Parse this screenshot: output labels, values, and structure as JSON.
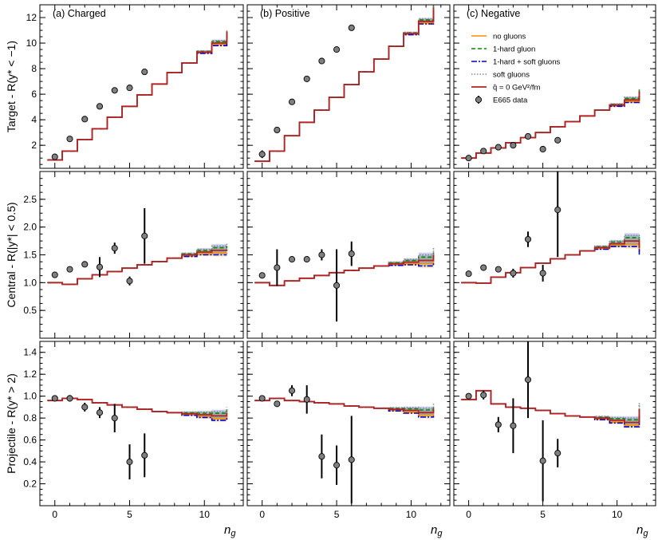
{
  "chart_data": {
    "type": "line",
    "xlabel": "n",
    "xlabel_sub": "g",
    "xlim": [
      -1,
      12.6
    ],
    "xticks": [
      0,
      5,
      10
    ],
    "columns": [
      "(a) Charged",
      "(b) Positive",
      "(c) Negative"
    ],
    "rows": [
      {
        "name": "target",
        "ylabel": "Target - R(y* < −1)",
        "ylim": [
          0.2,
          13
        ],
        "yticks": [
          2,
          4,
          6,
          8,
          10,
          12
        ],
        "ytick_labels": [
          "2",
          "4",
          "6",
          "8",
          "10",
          "12"
        ]
      },
      {
        "name": "central",
        "ylabel": "Central - R(|y*| < 0.5)",
        "ylim": [
          0,
          3
        ],
        "yticks": [
          0.5,
          1.0,
          1.5,
          2.0,
          2.5
        ],
        "ytick_labels": [
          "0.5",
          "1.0",
          "1.5",
          "2.0",
          "2.5"
        ]
      },
      {
        "name": "projectile",
        "ylabel": "Projectile - R(y* > 2)",
        "ylim": [
          0,
          1.5
        ],
        "yticks": [
          0.2,
          0.4,
          0.6,
          0.8,
          1.0,
          1.2,
          1.4
        ],
        "ytick_labels": [
          "0.2",
          "0.4",
          "0.6",
          "0.8",
          "1.0",
          "1.2",
          "1.4"
        ]
      }
    ],
    "legend": {
      "placement": "top-right of panel (c) Target",
      "entries": [
        {
          "label": "no gluons",
          "color": "#ff8c00",
          "style": "solid"
        },
        {
          "label": "1-hard gluon",
          "color": "#008800",
          "style": "dashed"
        },
        {
          "label": "1-hard + soft gluons",
          "color": "#0000cc",
          "style": "dashdot"
        },
        {
          "label": "soft gluons",
          "color": "#888888",
          "style": "dotted"
        },
        {
          "label": "q̂ = 0 GeV²/fm",
          "color": "#b22222",
          "style": "solid"
        },
        {
          "label": "E665 data",
          "color": "#808080",
          "style": "marker"
        }
      ]
    },
    "model_bins": {
      "edges": [
        -0.5,
        0.5,
        1.5,
        2.5,
        3.5,
        4.5,
        5.5,
        6.5,
        7.5,
        8.5,
        9.5,
        10.5,
        11.5
      ],
      "panels": [
        [
          {
            "values": [
              0.85,
              1.55,
              2.45,
              3.3,
              4.2,
              5.05,
              5.95,
              6.8,
              7.7,
              8.45,
              9.3,
              10.0,
              10.9
            ],
            "spread": [
              0,
              0,
              0,
              0,
              0,
              0,
              0,
              0,
              0,
              0,
              0.1,
              0.2,
              0.12
            ]
          },
          {
            "values": [
              0.75,
              1.55,
              2.75,
              3.8,
              4.75,
              5.75,
              6.75,
              7.75,
              8.75,
              9.75,
              10.75,
              11.7,
              12.8
            ],
            "spread": [
              0,
              0,
              0,
              0,
              0,
              0,
              0,
              0,
              0,
              0,
              0.1,
              0.2,
              0.25
            ]
          },
          {
            "values": [
              1.0,
              1.4,
              1.8,
              2.2,
              2.6,
              3.0,
              3.45,
              3.85,
              4.3,
              4.75,
              5.15,
              5.55,
              6.2
            ],
            "spread": [
              0,
              0,
              0,
              0,
              0,
              0,
              0,
              0,
              0,
              0,
              0.1,
              0.2,
              0.3
            ]
          }
        ],
        [
          {
            "values": [
              1.0,
              0.97,
              1.07,
              1.14,
              1.2,
              1.26,
              1.32,
              1.38,
              1.44,
              1.5,
              1.55,
              1.58,
              1.6
            ],
            "spread": [
              0,
              0,
              0,
              0,
              0,
              0,
              0,
              0,
              0,
              0.03,
              0.05,
              0.08,
              0.1
            ]
          },
          {
            "values": [
              1.0,
              0.95,
              1.03,
              1.08,
              1.13,
              1.18,
              1.22,
              1.26,
              1.3,
              1.34,
              1.37,
              1.4,
              1.5
            ],
            "spread": [
              0,
              0,
              0,
              0,
              0,
              0,
              0,
              0,
              0,
              0.03,
              0.05,
              0.1,
              0.15
            ]
          },
          {
            "values": [
              1.0,
              0.99,
              1.1,
              1.18,
              1.27,
              1.35,
              1.43,
              1.5,
              1.57,
              1.63,
              1.7,
              1.75,
              1.62
            ],
            "spread": [
              0,
              0,
              0,
              0,
              0,
              0,
              0,
              0,
              0,
              0.03,
              0.05,
              0.1,
              0.12
            ]
          }
        ],
        [
          {
            "values": [
              0.96,
              0.98,
              0.97,
              0.94,
              0.92,
              0.9,
              0.88,
              0.86,
              0.85,
              0.84,
              0.83,
              0.82,
              0.85
            ],
            "spread": [
              0,
              0,
              0,
              0,
              0,
              0,
              0,
              0,
              0,
              0.015,
              0.025,
              0.04,
              0.05
            ]
          },
          {
            "values": [
              0.96,
              0.98,
              0.96,
              0.95,
              0.94,
              0.93,
              0.91,
              0.9,
              0.89,
              0.88,
              0.87,
              0.85,
              0.88
            ],
            "spread": [
              0,
              0,
              0,
              0,
              0,
              0,
              0,
              0,
              0,
              0.015,
              0.025,
              0.04,
              0.06
            ]
          },
          {
            "values": [
              0.97,
              1.05,
              0.93,
              0.9,
              0.89,
              0.87,
              0.84,
              0.82,
              0.81,
              0.8,
              0.78,
              0.76,
              0.88
            ],
            "spread": [
              0,
              0,
              0,
              0,
              0,
              0,
              0,
              0,
              0,
              0.015,
              0.025,
              0.04,
              0.06
            ]
          }
        ]
      ]
    },
    "data_points": [
      [
        {
          "x": [
            0,
            1,
            2,
            3,
            4,
            5,
            6
          ],
          "y": [
            1.1,
            2.5,
            4.05,
            5.05,
            6.3,
            6.5,
            7.75
          ],
          "err": [
            0.05,
            0.05,
            0.1,
            0.08,
            0.12,
            0.12,
            0.12
          ]
        },
        {
          "x": [
            0,
            1,
            2,
            3,
            4,
            5,
            6
          ],
          "y": [
            1.3,
            3.2,
            5.4,
            7.2,
            8.6,
            9.5,
            11.2
          ],
          "err": [
            0.3,
            0.1,
            0.1,
            0.1,
            0.15,
            0.15,
            0.15
          ]
        },
        {
          "x": [
            0,
            1,
            2,
            3,
            4,
            5,
            6
          ],
          "y": [
            1.0,
            1.55,
            1.85,
            2.0,
            2.7,
            1.7,
            2.4
          ],
          "err": [
            0.05,
            0.05,
            0.05,
            0.05,
            0.1,
            0.1,
            0.15
          ]
        }
      ],
      [
        {
          "x": [
            0,
            1,
            2,
            3,
            4,
            5,
            6
          ],
          "y": [
            1.14,
            1.24,
            1.33,
            1.28,
            1.62,
            1.03,
            1.84
          ],
          "err": [
            0.03,
            0.03,
            0.03,
            0.18,
            0.1,
            0.08,
            0.5
          ]
        },
        {
          "x": [
            0,
            1,
            2,
            3,
            4,
            5,
            6
          ],
          "y": [
            1.13,
            1.27,
            1.42,
            1.42,
            1.5,
            0.95,
            1.52
          ],
          "err": [
            0.03,
            0.33,
            0.03,
            0.03,
            0.1,
            0.65,
            0.22
          ]
        },
        {
          "x": [
            0,
            1,
            2,
            3,
            4,
            5,
            6
          ],
          "y": [
            1.16,
            1.27,
            1.24,
            1.17,
            1.78,
            1.17,
            2.31
          ],
          "err": [
            0.03,
            0.03,
            0.03,
            0.08,
            0.14,
            0.15,
            0.85
          ]
        }
      ],
      [
        {
          "x": [
            0,
            1,
            2,
            3,
            4,
            5,
            6
          ],
          "y": [
            0.98,
            0.98,
            0.9,
            0.85,
            0.8,
            0.4,
            0.46
          ],
          "err": [
            0.02,
            0.03,
            0.04,
            0.05,
            0.13,
            0.16,
            0.2
          ]
        },
        {
          "x": [
            0,
            1,
            2,
            3,
            4,
            5,
            6
          ],
          "y": [
            0.98,
            0.93,
            1.05,
            0.97,
            0.45,
            0.37,
            0.42
          ],
          "err": [
            0.02,
            0.02,
            0.05,
            0.13,
            0.2,
            0.18,
            0.4
          ]
        },
        {
          "x": [
            0,
            1,
            2,
            3,
            4,
            5,
            6
          ],
          "y": [
            1.0,
            1.01,
            0.74,
            0.73,
            1.15,
            0.41,
            0.48
          ],
          "err": [
            0.02,
            0.04,
            0.07,
            0.25,
            0.35,
            0.37,
            0.13
          ]
        }
      ]
    ]
  }
}
